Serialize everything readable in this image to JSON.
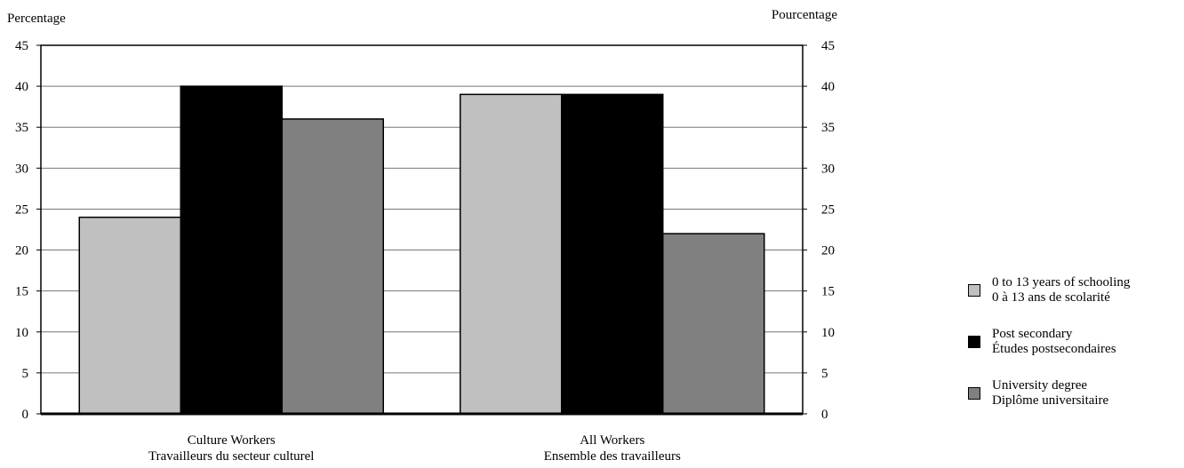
{
  "chart_data": {
    "type": "bar",
    "ylabel_left": "Percentage",
    "ylabel_right": "Pourcentage",
    "ylim": [
      0,
      45
    ],
    "yticks": [
      0,
      5,
      10,
      15,
      20,
      25,
      30,
      35,
      40,
      45
    ],
    "grid": true,
    "legend_position": "right",
    "categories": [
      {
        "line1": "Culture Workers",
        "line2": "Travailleurs du secteur culturel"
      },
      {
        "line1": "All Workers",
        "line2": "Ensemble des travailleurs"
      }
    ],
    "series": [
      {
        "name": "0 to 13 years of schooling",
        "name_fr": "0 à 13 ans de scolarité",
        "color": "#c0c0c0",
        "values": [
          24,
          39
        ]
      },
      {
        "name": "Post secondary",
        "name_fr": "Études postsecondaires",
        "color": "#000000",
        "values": [
          40,
          39
        ]
      },
      {
        "name": "University degree",
        "name_fr": "Diplôme universitaire",
        "color": "#808080",
        "values": [
          36,
          22
        ]
      }
    ]
  }
}
